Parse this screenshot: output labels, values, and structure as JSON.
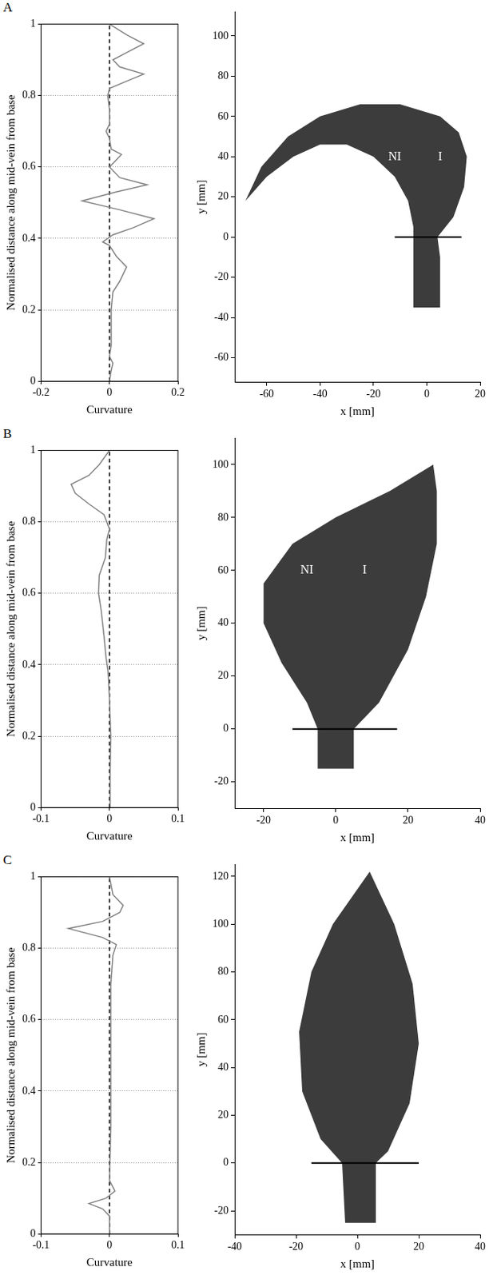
{
  "chart_data": [
    {
      "type": "line",
      "panel": "A",
      "x_label": "Curvature",
      "y_label": "Normalised distance along mid-vein from base",
      "xlim": [
        -0.2,
        0.2
      ],
      "xticks": [
        -0.2,
        0,
        0.2
      ],
      "ylim": [
        0,
        1
      ],
      "yticks": [
        0,
        0.2,
        0.4,
        0.6,
        0.8,
        1
      ],
      "grid": "y",
      "series": [
        {
          "color": "#808080",
          "line_style": "solid",
          "x": [
            0,
            0.005,
            0.01,
            0,
            0.005,
            0.005,
            0.005,
            0.01,
            0.03,
            0.05,
            0.02,
            0,
            -0.02,
            0.01,
            0.07,
            0.13,
            0.03,
            -0.08,
            0.02,
            0.11,
            0.03,
            0,
            0.02,
            0.035,
            0.005,
            0,
            -0.01,
            0,
            0,
            -0.005,
            0,
            0.05,
            0.1,
            0.03,
            0.01,
            0.05,
            0.1,
            0.05,
            0
          ],
          "y": [
            0,
            0.03,
            0.05,
            0.07,
            0.1,
            0.15,
            0.2,
            0.25,
            0.28,
            0.32,
            0.35,
            0.38,
            0.39,
            0.41,
            0.43,
            0.455,
            0.48,
            0.505,
            0.53,
            0.55,
            0.57,
            0.6,
            0.62,
            0.635,
            0.65,
            0.68,
            0.7,
            0.72,
            0.76,
            0.8,
            0.82,
            0.84,
            0.86,
            0.88,
            0.9,
            0.92,
            0.945,
            0.97,
            1
          ]
        },
        {
          "color": "#000000",
          "line_style": "dashed",
          "x": [
            0,
            0
          ],
          "y": [
            0,
            1
          ]
        }
      ]
    },
    {
      "type": "area",
      "x_label": "x [mm]",
      "y_label": "y [mm]",
      "xlim": [
        -72,
        20
      ],
      "xticks": [
        -60,
        -40,
        -20,
        0,
        20
      ],
      "ylim": [
        -72,
        112
      ],
      "yticks": [
        -60,
        -40,
        -20,
        0,
        20,
        40,
        60,
        80,
        100
      ],
      "grid": false,
      "color": "#3c3c3c",
      "outline": {
        "x": [
          -5,
          5,
          5,
          4,
          10,
          14,
          15,
          12,
          5,
          -10,
          -25,
          -40,
          -52,
          -62,
          -68,
          -60,
          -50,
          -40,
          -30,
          -20,
          -12,
          -7,
          -5,
          -5
        ],
        "y": [
          -35,
          -35,
          -10,
          0,
          10,
          25,
          40,
          52,
          60,
          66,
          66,
          60,
          50,
          35,
          18,
          30,
          40,
          46,
          46,
          40,
          30,
          18,
          5,
          -10
        ]
      },
      "series": [
        {
          "color": "#000000",
          "line_style": "solid",
          "x": [
            -12,
            13
          ],
          "y": [
            0,
            0
          ]
        }
      ],
      "annotations": [
        {
          "text": "NI",
          "x": -12,
          "y": 40
        },
        {
          "text": "I",
          "x": 5,
          "y": 40
        }
      ]
    },
    {
      "type": "line",
      "panel": "B",
      "x_label": "Curvature",
      "y_label": "Normalised distance along mid-vein from base",
      "xlim": [
        -0.1,
        0.1
      ],
      "xticks": [
        -0.1,
        0,
        0.1
      ],
      "ylim": [
        0,
        1
      ],
      "yticks": [
        0,
        0.2,
        0.4,
        0.6,
        0.8,
        1
      ],
      "grid": "y",
      "series": [
        {
          "color": "#808080",
          "line_style": "solid",
          "x": [
            0.001,
            0.001,
            0.002,
            0,
            -0.002,
            -0.005,
            -0.008,
            -0.012,
            -0.016,
            -0.015,
            -0.006,
            -0.004,
            0,
            -0.008,
            -0.03,
            -0.05,
            -0.056,
            -0.03,
            -0.015,
            0
          ],
          "y": [
            0,
            0.1,
            0.2,
            0.3,
            0.38,
            0.42,
            0.48,
            0.55,
            0.6,
            0.65,
            0.7,
            0.75,
            0.78,
            0.82,
            0.85,
            0.88,
            0.905,
            0.93,
            0.96,
            1
          ]
        },
        {
          "color": "#000000",
          "line_style": "dashed",
          "x": [
            0,
            0
          ],
          "y": [
            0,
            1
          ]
        }
      ]
    },
    {
      "type": "area",
      "x_label": "x [mm]",
      "y_label": "y [mm]",
      "xlim": [
        -28,
        40
      ],
      "xticks": [
        -20,
        0,
        20,
        40
      ],
      "ylim": [
        -30,
        110
      ],
      "yticks": [
        -20,
        0,
        20,
        40,
        60,
        80,
        100
      ],
      "grid": false,
      "color": "#3c3c3c",
      "outline": {
        "x": [
          -5,
          5,
          5,
          12,
          20,
          25,
          28,
          28,
          27,
          15,
          0,
          -12,
          -20,
          -20,
          -15,
          -8,
          -5
        ],
        "y": [
          -15,
          -15,
          0,
          10,
          30,
          50,
          70,
          90,
          100,
          90,
          80,
          70,
          55,
          40,
          25,
          10,
          0
        ]
      },
      "series": [
        {
          "color": "#000000",
          "line_style": "solid",
          "x": [
            -12,
            17
          ],
          "y": [
            0,
            0
          ]
        }
      ],
      "annotations": [
        {
          "text": "NI",
          "x": -8,
          "y": 60
        },
        {
          "text": "I",
          "x": 8,
          "y": 60
        }
      ]
    },
    {
      "type": "line",
      "panel": "C",
      "x_label": "Curvature",
      "y_label": "Normalised distance along mid-vein from base",
      "xlim": [
        -0.1,
        0.1
      ],
      "xticks": [
        -0.1,
        0,
        0.1
      ],
      "ylim": [
        0,
        1
      ],
      "yticks": [
        0,
        0.2,
        0.4,
        0.6,
        0.8,
        1
      ],
      "grid": "y",
      "series": [
        {
          "color": "#808080",
          "line_style": "solid",
          "x": [
            0,
            0,
            -0.01,
            -0.03,
            -0.005,
            0.008,
            0,
            0.002,
            0.002,
            0.002,
            0.005,
            0.01,
            -0.01,
            -0.06,
            -0.01,
            0.015,
            0.02,
            0.005,
            0
          ],
          "y": [
            0,
            0.05,
            0.07,
            0.085,
            0.1,
            0.12,
            0.15,
            0.3,
            0.5,
            0.7,
            0.78,
            0.81,
            0.83,
            0.855,
            0.875,
            0.9,
            0.92,
            0.95,
            1
          ]
        },
        {
          "color": "#000000",
          "line_style": "dashed",
          "x": [
            0,
            0
          ],
          "y": [
            0,
            1
          ]
        }
      ]
    },
    {
      "type": "area",
      "x_label": "x [mm]",
      "y_label": "y [mm]",
      "xlim": [
        -40,
        40
      ],
      "xticks": [
        -40,
        -20,
        0,
        20,
        40
      ],
      "ylim": [
        -30,
        125
      ],
      "yticks": [
        -20,
        0,
        20,
        40,
        60,
        80,
        100,
        120
      ],
      "grid": false,
      "color": "#3c3c3c",
      "outline": {
        "x": [
          4,
          12,
          18,
          20,
          17,
          10,
          6,
          6,
          -4,
          -5,
          -12,
          -18,
          -19,
          -15,
          -8
        ],
        "y": [
          122,
          100,
          75,
          50,
          25,
          5,
          0,
          -25,
          -25,
          0,
          10,
          30,
          55,
          80,
          100
        ]
      },
      "series": [
        {
          "color": "#000000",
          "line_style": "solid",
          "x": [
            -15,
            20
          ],
          "y": [
            0,
            0
          ]
        }
      ],
      "annotations": []
    }
  ]
}
